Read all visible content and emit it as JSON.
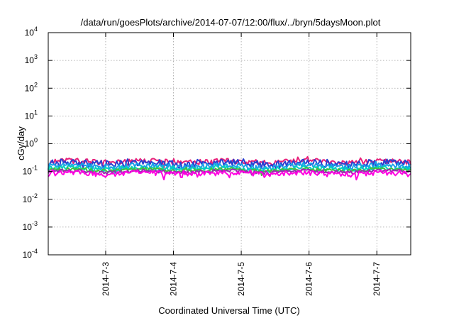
{
  "chart_data": {
    "type": "line",
    "title": "/data/run/goesPlots/archive/2014-07-07/12:00/flux/../bryn/5daysMoon.plot",
    "xlabel": "Coordinated Universal Time (UTC)",
    "ylabel": "cGy/day",
    "y_scale": "log",
    "ylim": [
      0.0001,
      10000
    ],
    "xlim": [
      "2014-07-02 03:40",
      "2014-07-07 12:00"
    ],
    "grid": true,
    "legend": "none",
    "y_ticks": [
      {
        "base": "10",
        "exp": "-4",
        "value": 0.0001
      },
      {
        "base": "10",
        "exp": "-3",
        "value": 0.001
      },
      {
        "base": "10",
        "exp": "-2",
        "value": 0.01
      },
      {
        "base": "10",
        "exp": "-1",
        "value": 0.1
      },
      {
        "base": "10",
        "exp": "0",
        "value": 1
      },
      {
        "base": "10",
        "exp": "1",
        "value": 10
      },
      {
        "base": "10",
        "exp": "2",
        "value": 100
      },
      {
        "base": "10",
        "exp": "3",
        "value": 1000
      },
      {
        "base": "10",
        "exp": "4",
        "value": 10000
      }
    ],
    "x_ticks": [
      {
        "label": "2014-7-3",
        "date": "2014-07-03 00:00"
      },
      {
        "label": "2014-7-4",
        "date": "2014-07-04 00:00"
      },
      {
        "label": "2014-7-5",
        "date": "2014-07-05 00:00"
      },
      {
        "label": "2014-7-6",
        "date": "2014-07-06 00:00"
      },
      {
        "label": "2014-7-7",
        "date": "2014-07-07 00:00"
      }
    ],
    "series": [
      {
        "color": "#e8207a",
        "base": 0.23,
        "amp": 0.22,
        "seed": 11
      },
      {
        "color": "#2a3fd0",
        "base": 0.2,
        "amp": 0.3,
        "seed": 23
      },
      {
        "color": "#1aa0e8",
        "base": 0.16,
        "amp": 0.22,
        "seed": 37
      },
      {
        "color": "#00d0c0",
        "base": 0.13,
        "amp": 0.18,
        "seed": 41
      },
      {
        "color": "#40c040",
        "base": 0.115,
        "amp": 0.14,
        "seed": 53
      },
      {
        "color": "#9a2ab0",
        "base": 0.1,
        "amp": 0.14,
        "seed": 67
      },
      {
        "color": "#ff00e0",
        "base": 0.085,
        "amp": 0.22,
        "seed": 79
      }
    ]
  }
}
